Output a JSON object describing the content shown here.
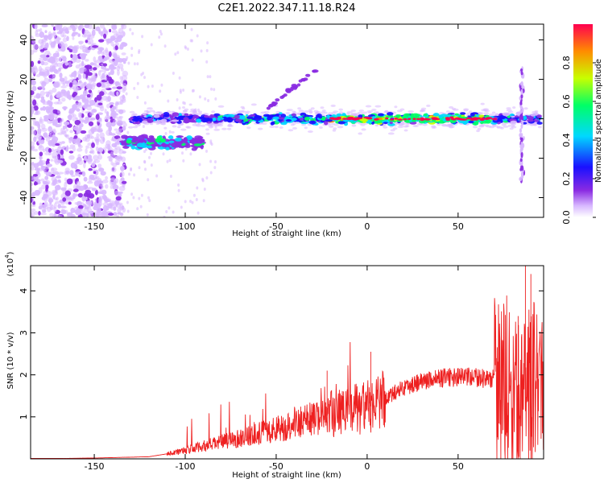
{
  "chart_data": [
    {
      "type": "heatmap",
      "title": "C2E1.2022.347.11.18.R24",
      "xlabel": "Height of straight line (km)",
      "ylabel": "Frequency (Hz)",
      "xlim": [
        -185,
        97
      ],
      "ylim": [
        -50,
        48
      ],
      "xticks": [
        -150,
        -100,
        -50,
        0,
        50
      ],
      "yticks": [
        -40,
        -20,
        0,
        20,
        40
      ],
      "colorbar": {
        "label": "Normalized spectral amplitude",
        "range": [
          0,
          1
        ],
        "ticks": [
          0.0,
          0.2,
          0.4,
          0.6,
          0.8
        ],
        "colors": [
          "#ffffff",
          "#d8b8ff",
          "#8a2be2",
          "#1a10ff",
          "#00d8ff",
          "#00ff66",
          "#c8ff00",
          "#ff8c00",
          "#ff0050"
        ]
      },
      "features": [
        {
          "name": "noise-region",
          "x_range": [
            -185,
            -133
          ],
          "freq_range": [
            -50,
            48
          ]
        },
        {
          "name": "main-echo",
          "x_range": [
            -130,
            95
          ],
          "freq": 0
        },
        {
          "name": "lower-branch",
          "x_range": [
            -135,
            -90
          ],
          "freq": -12
        },
        {
          "name": "upper-branch",
          "x_range": [
            -55,
            -28
          ],
          "freq_range": [
            5,
            25
          ]
        }
      ]
    },
    {
      "type": "line",
      "title": "",
      "xlabel": "Height of straight line (km)",
      "ylabel": "SNR (10 * v/v)",
      "y_scale_label": "(x10",
      "y_scale_exp": "4",
      "xlim": [
        -185,
        97
      ],
      "ylim": [
        0,
        4.6
      ],
      "xticks": [
        -150,
        -100,
        -50,
        0,
        50
      ],
      "yticks": [
        1,
        2,
        3,
        4
      ],
      "color": "#ee2020",
      "series": [
        {
          "name": "SNR",
          "x": [
            -185,
            -150,
            -120,
            -110,
            -100,
            -90,
            -80,
            -70,
            -60,
            -50,
            -40,
            -30,
            -20,
            -10,
            0,
            10,
            20,
            30,
            40,
            50,
            60,
            70,
            75,
            80,
            85,
            90,
            95
          ],
          "y": [
            0.0,
            0.02,
            0.05,
            0.12,
            0.2,
            0.3,
            0.4,
            0.5,
            0.6,
            0.7,
            0.85,
            0.95,
            1.05,
            1.15,
            1.2,
            1.45,
            1.7,
            1.85,
            1.92,
            1.95,
            1.93,
            1.9,
            1.8,
            1.6,
            1.5,
            1.8,
            1.9
          ]
        }
      ]
    }
  ]
}
